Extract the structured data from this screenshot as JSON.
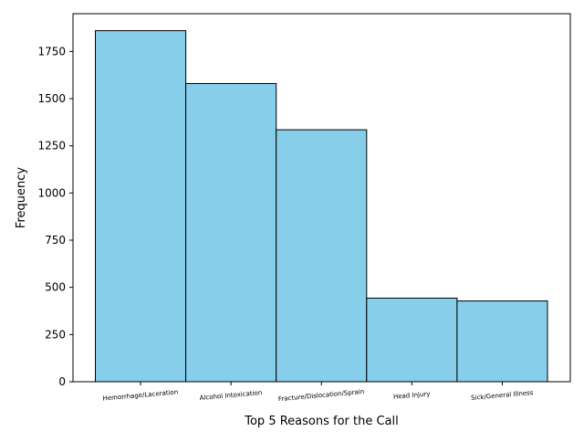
{
  "chart_data": {
    "type": "bar",
    "title": "",
    "xlabel": "Top 5 Reasons for the Call",
    "ylabel": "Frequency",
    "categories": [
      "Hemorrhage/Laceration",
      "Alcohol Intoxication",
      "Fracture/Dislocation/Sprain",
      "Head Injury",
      "Sick/General Illness"
    ],
    "values": [
      1860,
      1580,
      1335,
      443,
      428
    ],
    "ylim": [
      0,
      1950
    ],
    "yticks": [
      0,
      250,
      500,
      750,
      1000,
      1250,
      1500,
      1750
    ],
    "bar_color": "#87CEEB",
    "edge_color": "#000000",
    "grid": false,
    "legend": "none"
  }
}
